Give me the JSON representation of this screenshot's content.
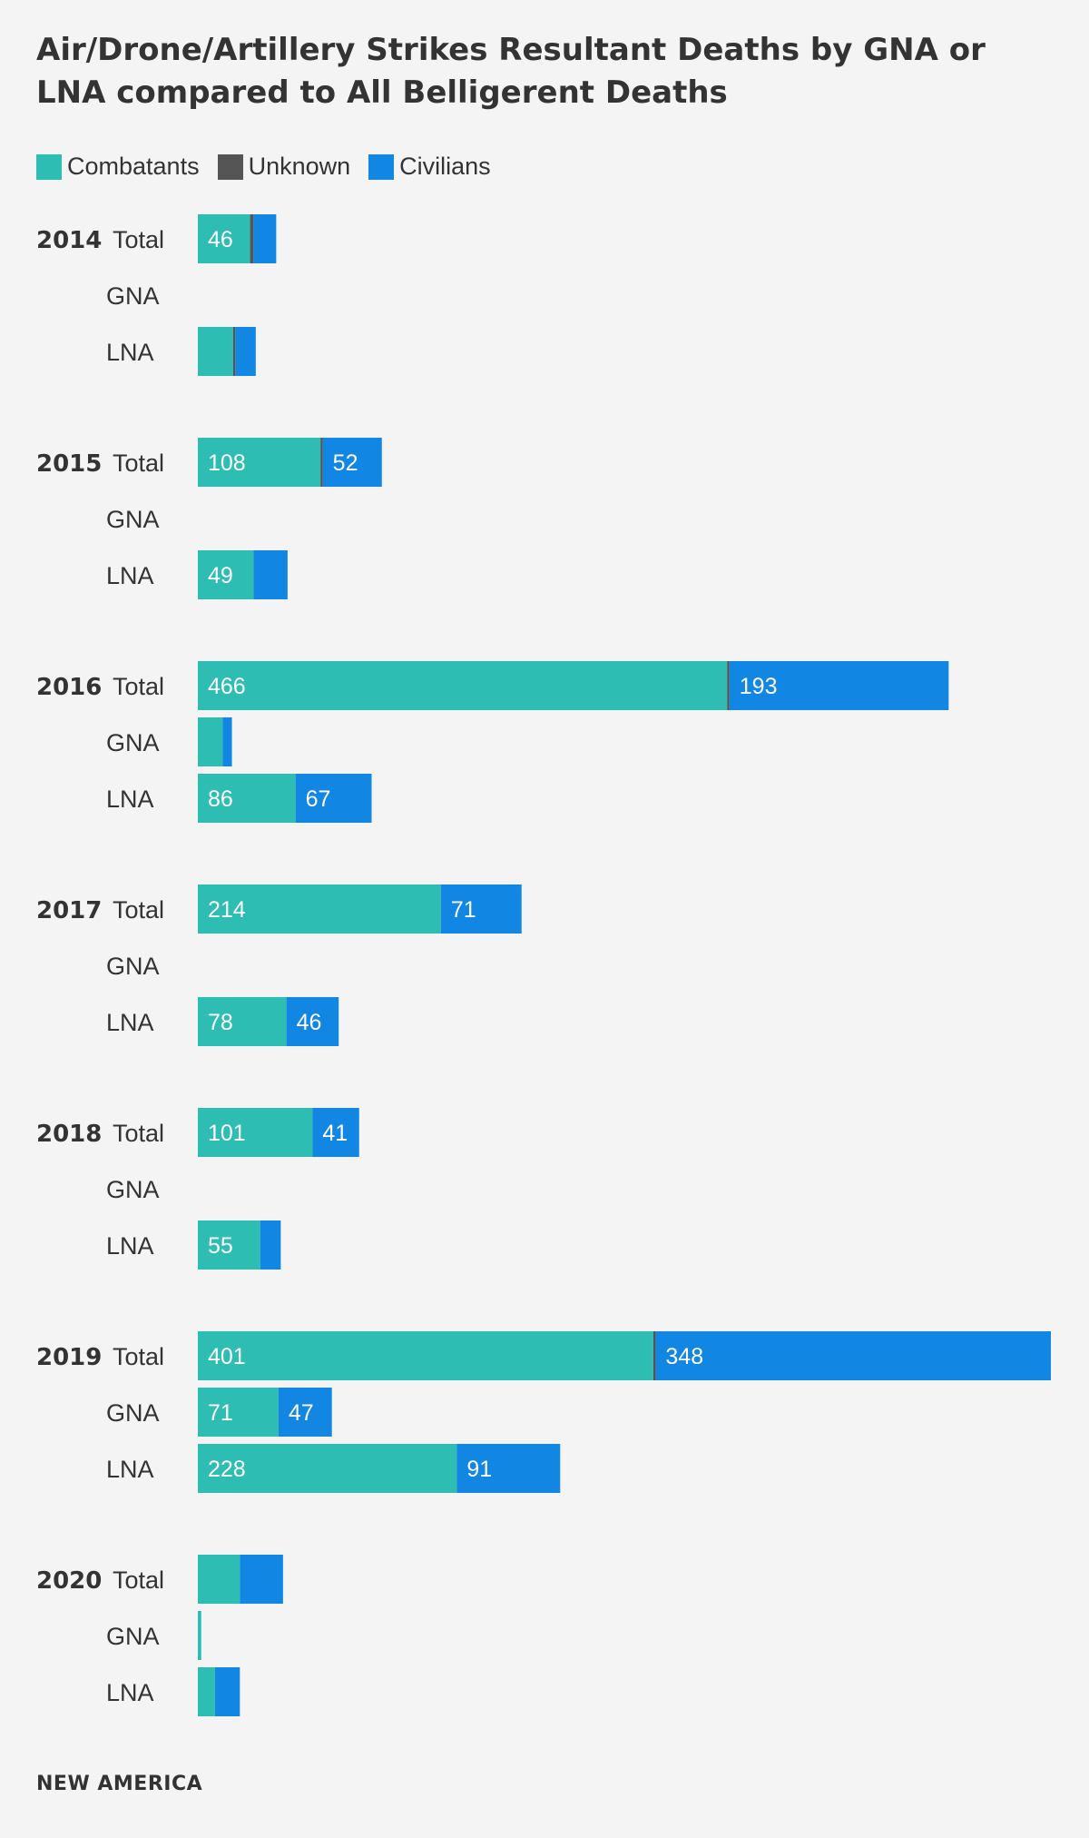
{
  "chart_data": {
    "type": "bar",
    "orientation": "horizontal",
    "stacked": true,
    "title": "Air/Drone/Artillery Strikes Resultant Deaths by GNA or LNA compared to All Belligerent Deaths",
    "legend": [
      {
        "name": "Combatants",
        "color": "#2dbdb3"
      },
      {
        "name": "Unknown",
        "color": "#555555"
      },
      {
        "name": "Civilians",
        "color": "#1186e2"
      }
    ],
    "groups": [
      {
        "year": "2014",
        "rows": [
          {
            "label": "Total",
            "combatants": 46,
            "unknown": 3,
            "civilians": 20,
            "show_labels": {
              "combatants": "46"
            }
          },
          {
            "label": "GNA",
            "combatants": 0,
            "unknown": 0,
            "civilians": 0,
            "show_labels": {}
          },
          {
            "label": "LNA",
            "combatants": 31,
            "unknown": 2,
            "civilians": 18,
            "show_labels": {}
          }
        ]
      },
      {
        "year": "2015",
        "rows": [
          {
            "label": "Total",
            "combatants": 108,
            "unknown": 2,
            "civilians": 52,
            "show_labels": {
              "combatants": "108",
              "civilians": "52"
            }
          },
          {
            "label": "GNA",
            "combatants": 0,
            "unknown": 0,
            "civilians": 0,
            "show_labels": {}
          },
          {
            "label": "LNA",
            "combatants": 49,
            "unknown": 0,
            "civilians": 30,
            "show_labels": {
              "combatants": "49"
            }
          }
        ]
      },
      {
        "year": "2016",
        "rows": [
          {
            "label": "Total",
            "combatants": 466,
            "unknown": 2,
            "civilians": 193,
            "show_labels": {
              "combatants": "466",
              "civilians": "193"
            }
          },
          {
            "label": "GNA",
            "combatants": 22,
            "unknown": 0,
            "civilians": 8,
            "show_labels": {}
          },
          {
            "label": "LNA",
            "combatants": 86,
            "unknown": 0,
            "civilians": 67,
            "show_labels": {
              "combatants": "86",
              "civilians": "67"
            }
          }
        ]
      },
      {
        "year": "2017",
        "rows": [
          {
            "label": "Total",
            "combatants": 214,
            "unknown": 0,
            "civilians": 71,
            "show_labels": {
              "combatants": "214",
              "civilians": "71"
            }
          },
          {
            "label": "GNA",
            "combatants": 0,
            "unknown": 0,
            "civilians": 0,
            "show_labels": {}
          },
          {
            "label": "LNA",
            "combatants": 78,
            "unknown": 0,
            "civilians": 46,
            "show_labels": {
              "combatants": "78",
              "civilians": "46"
            }
          }
        ]
      },
      {
        "year": "2018",
        "rows": [
          {
            "label": "Total",
            "combatants": 101,
            "unknown": 0,
            "civilians": 41,
            "show_labels": {
              "combatants": "101",
              "civilians": "41"
            }
          },
          {
            "label": "GNA",
            "combatants": 0,
            "unknown": 0,
            "civilians": 0,
            "show_labels": {}
          },
          {
            "label": "LNA",
            "combatants": 55,
            "unknown": 0,
            "civilians": 18,
            "show_labels": {
              "combatants": "55"
            }
          }
        ]
      },
      {
        "year": "2019",
        "rows": [
          {
            "label": "Total",
            "combatants": 401,
            "unknown": 2,
            "civilians": 348,
            "show_labels": {
              "combatants": "401",
              "civilians": "348"
            }
          },
          {
            "label": "GNA",
            "combatants": 71,
            "unknown": 0,
            "civilians": 47,
            "show_labels": {
              "combatants": "71",
              "civilians": "47"
            }
          },
          {
            "label": "LNA",
            "combatants": 228,
            "unknown": 0,
            "civilians": 91,
            "show_labels": {
              "combatants": "228",
              "civilians": "91"
            }
          }
        ]
      },
      {
        "year": "2020",
        "rows": [
          {
            "label": "Total",
            "combatants": 37,
            "unknown": 0,
            "civilians": 38,
            "show_labels": {}
          },
          {
            "label": "GNA",
            "combatants": 3,
            "unknown": 0,
            "civilians": 0,
            "show_labels": {}
          },
          {
            "label": "LNA",
            "combatants": 15,
            "unknown": 0,
            "civilians": 22,
            "show_labels": {}
          }
        ]
      }
    ],
    "xlim": [
      0,
      751
    ]
  },
  "footer": {
    "logo_text": "NEW AMERICA"
  }
}
